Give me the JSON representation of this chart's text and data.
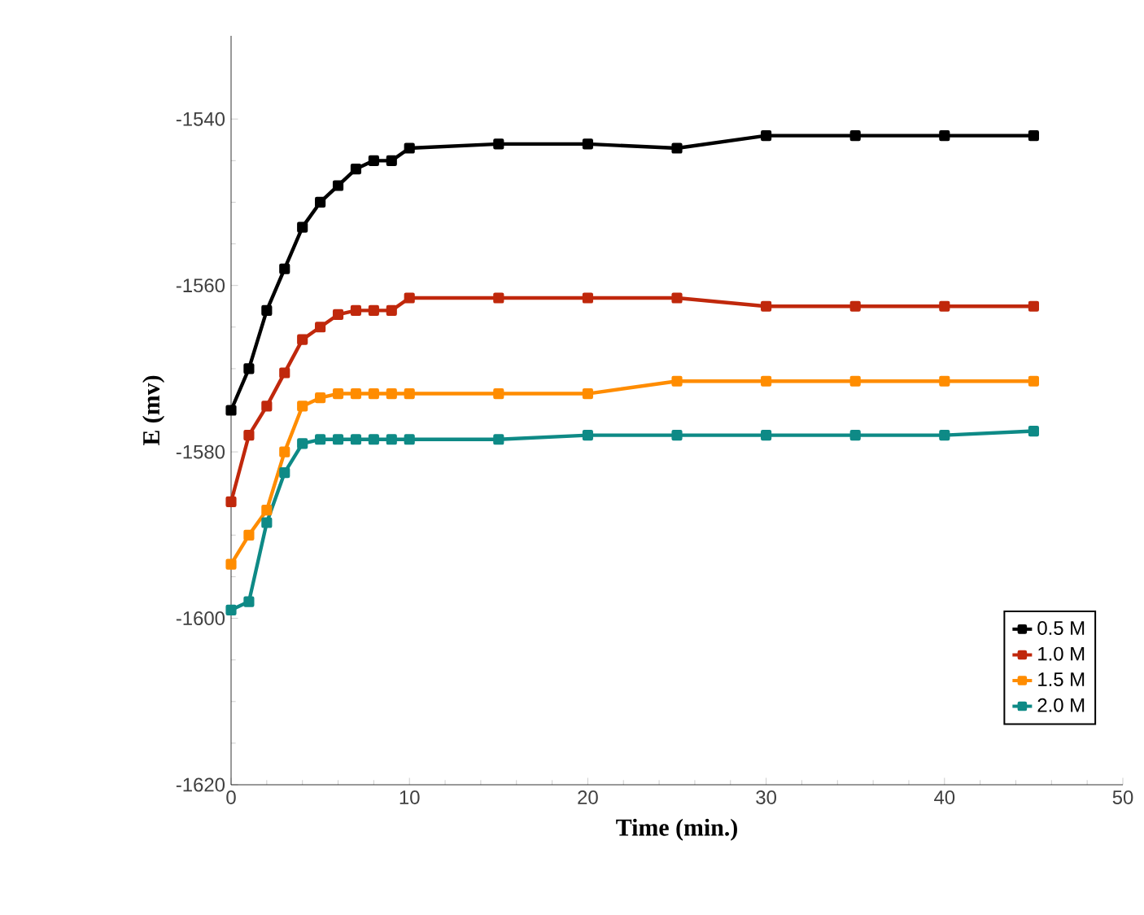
{
  "chart_data": {
    "type": "line",
    "xlabel": "Time (min.)",
    "ylabel": "E (mv)",
    "x": [
      0,
      1,
      2,
      3,
      4,
      5,
      6,
      7,
      8,
      9,
      10,
      15,
      20,
      25,
      30,
      35,
      40,
      45
    ],
    "series": [
      {
        "name": "0.5 M",
        "color": "#000000",
        "values": [
          -1575,
          -1570,
          -1563,
          -1558,
          -1553,
          -1550,
          -1548,
          -1546,
          -1545,
          -1545,
          -1543.5,
          -1543,
          -1543,
          -1543.5,
          -1542,
          -1542,
          -1542,
          -1542
        ]
      },
      {
        "name": "1.0 M",
        "color": "#c0280c",
        "values": [
          -1586,
          -1578,
          -1574.5,
          -1570.5,
          -1566.5,
          -1565,
          -1563.5,
          -1563,
          -1563,
          -1563,
          -1561.5,
          -1561.5,
          -1561.5,
          -1561.5,
          -1562.5,
          -1562.5,
          -1562.5,
          -1562.5
        ]
      },
      {
        "name": "1.5 M",
        "color": "#ff8c00",
        "values": [
          -1593.5,
          -1590,
          -1587,
          -1580,
          -1574.5,
          -1573.5,
          -1573,
          -1573,
          -1573,
          -1573,
          -1573,
          -1573,
          -1573,
          -1571.5,
          -1571.5,
          -1571.5,
          -1571.5,
          -1571.5
        ]
      },
      {
        "name": "2.0 M",
        "color": "#0e8a86",
        "values": [
          -1599,
          -1598,
          -1588.5,
          -1582.5,
          -1579,
          -1578.5,
          -1578.5,
          -1578.5,
          -1578.5,
          -1578.5,
          -1578.5,
          -1578.5,
          -1578,
          -1578,
          -1578,
          -1578,
          -1578,
          -1577.5
        ]
      }
    ],
    "xlim": [
      0,
      50
    ],
    "xticks": [
      0,
      10,
      20,
      30,
      40,
      50
    ],
    "ylim": [
      -1620,
      -1530
    ],
    "yticks": [
      -1620,
      -1600,
      -1580,
      -1560,
      -1540
    ],
    "grid": false,
    "legend": "bottom right",
    "marker": "square",
    "line_style": "solid"
  }
}
